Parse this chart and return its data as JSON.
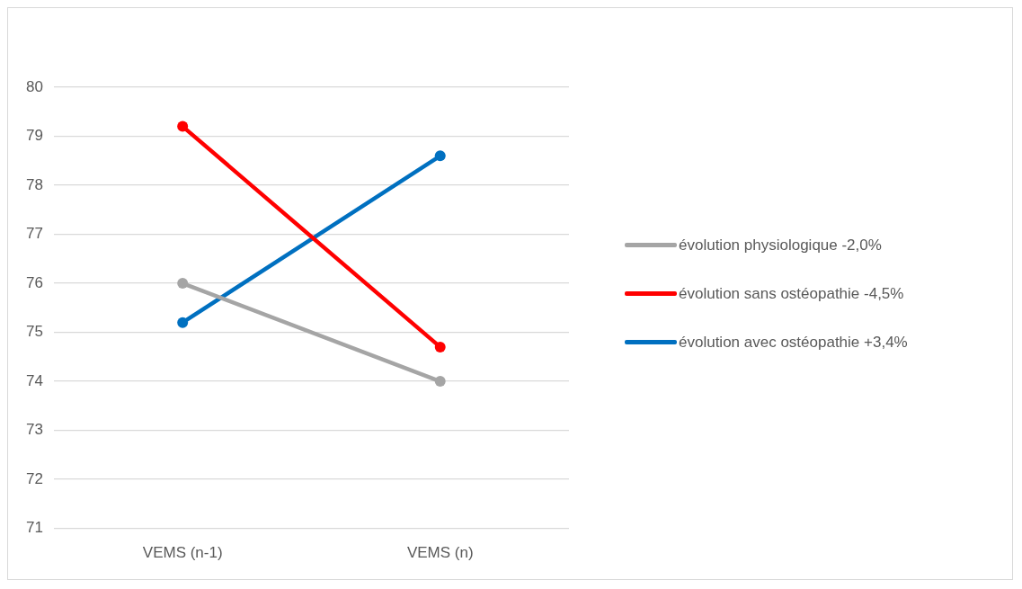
{
  "chart_data": {
    "type": "line",
    "categories": [
      "VEMS (n-1)",
      "VEMS (n)"
    ],
    "series": [
      {
        "name": "évolution physiologique -2,0%",
        "color": "#a5a5a5",
        "values": [
          76,
          74
        ]
      },
      {
        "name": "évolution sans ostéopathie -4,5%",
        "color": "#ff0000",
        "values": [
          79.2,
          74.7
        ]
      },
      {
        "name": "évolution avec ostéopathie +3,4%",
        "color": "#0070c0",
        "values": [
          75.2,
          78.6
        ]
      }
    ],
    "ylim": [
      71,
      80
    ],
    "yticks": [
      71,
      72,
      73,
      74,
      75,
      76,
      77,
      78,
      79,
      80
    ],
    "grid": "y",
    "legend": "right",
    "marker": "circle",
    "line_style": "solid"
  }
}
